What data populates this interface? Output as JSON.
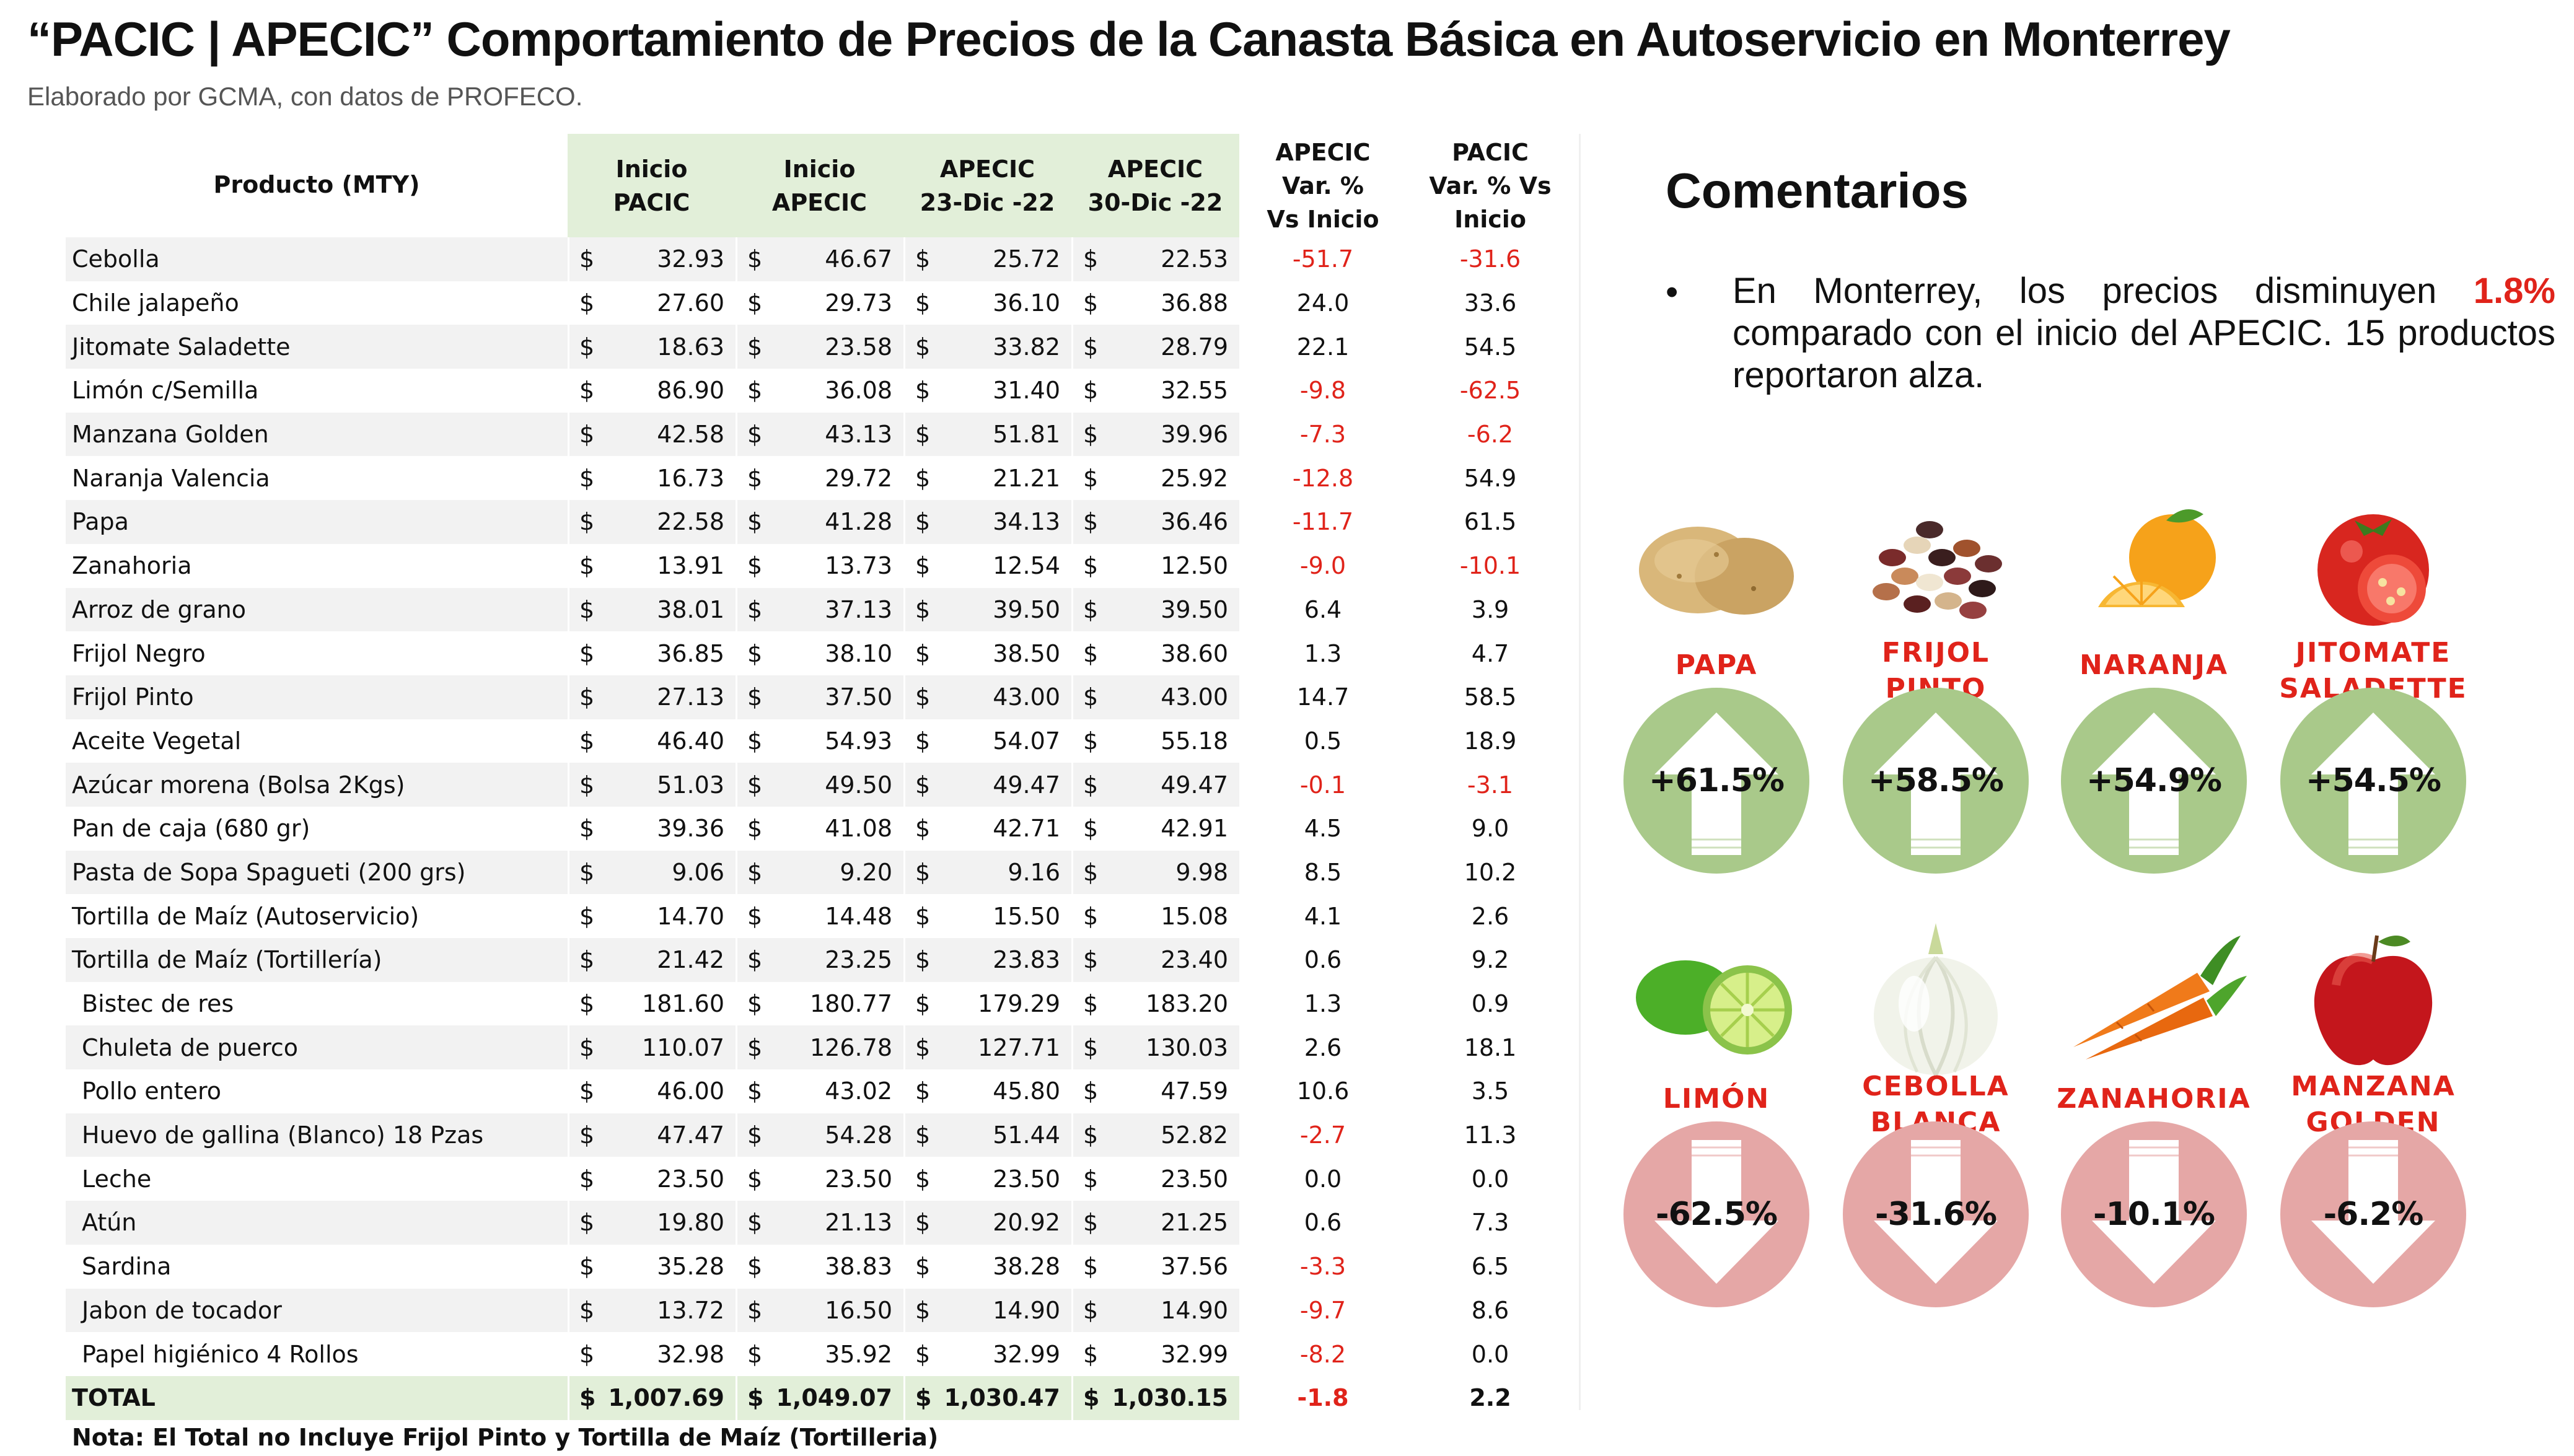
{
  "title": "“PACIC | APECIC” Comportamiento de Precios de la Canasta Básica en Autoservicio en Monterrey",
  "subtitle": "Elaborado por GCMA, con datos de PROFECO.",
  "table": {
    "headers": {
      "product": "Producto (MTY)",
      "c1": [
        "Inicio",
        "PACIC"
      ],
      "c2": [
        "Inicio",
        "APECIC"
      ],
      "c3": [
        "APECIC",
        "23-Dic -22"
      ],
      "c4": [
        "APECIC",
        "30-Dic -22"
      ],
      "c5": [
        "APECIC",
        "Var. %",
        "Vs  Inicio"
      ],
      "c6": [
        "PACIC",
        "Var. % Vs",
        "Inicio"
      ]
    },
    "currency": "$",
    "rows": [
      {
        "product": "Cebolla",
        "indent": false,
        "inicio_pacic": "32.93",
        "inicio_apecic": "46.67",
        "apecic_23dic": "25.72",
        "apecic_30dic": "22.53",
        "var_apecic": "-51.7",
        "var_pacic": "-31.6"
      },
      {
        "product": "Chile jalapeño",
        "indent": false,
        "inicio_pacic": "27.60",
        "inicio_apecic": "29.73",
        "apecic_23dic": "36.10",
        "apecic_30dic": "36.88",
        "var_apecic": "24.0",
        "var_pacic": "33.6"
      },
      {
        "product": "Jitomate Saladette",
        "indent": false,
        "inicio_pacic": "18.63",
        "inicio_apecic": "23.58",
        "apecic_23dic": "33.82",
        "apecic_30dic": "28.79",
        "var_apecic": "22.1",
        "var_pacic": "54.5"
      },
      {
        "product": "Limón c/Semilla",
        "indent": false,
        "inicio_pacic": "86.90",
        "inicio_apecic": "36.08",
        "apecic_23dic": "31.40",
        "apecic_30dic": "32.55",
        "var_apecic": "-9.8",
        "var_pacic": "-62.5"
      },
      {
        "product": "Manzana Golden",
        "indent": false,
        "inicio_pacic": "42.58",
        "inicio_apecic": "43.13",
        "apecic_23dic": "51.81",
        "apecic_30dic": "39.96",
        "var_apecic": "-7.3",
        "var_pacic": "-6.2"
      },
      {
        "product": "Naranja Valencia",
        "indent": false,
        "inicio_pacic": "16.73",
        "inicio_apecic": "29.72",
        "apecic_23dic": "21.21",
        "apecic_30dic": "25.92",
        "var_apecic": "-12.8",
        "var_pacic": "54.9"
      },
      {
        "product": "Papa",
        "indent": false,
        "inicio_pacic": "22.58",
        "inicio_apecic": "41.28",
        "apecic_23dic": "34.13",
        "apecic_30dic": "36.46",
        "var_apecic": "-11.7",
        "var_pacic": "61.5"
      },
      {
        "product": "Zanahoria",
        "indent": false,
        "inicio_pacic": "13.91",
        "inicio_apecic": "13.73",
        "apecic_23dic": "12.54",
        "apecic_30dic": "12.50",
        "var_apecic": "-9.0",
        "var_pacic": "-10.1"
      },
      {
        "product": "Arroz de grano",
        "indent": false,
        "inicio_pacic": "38.01",
        "inicio_apecic": "37.13",
        "apecic_23dic": "39.50",
        "apecic_30dic": "39.50",
        "var_apecic": "6.4",
        "var_pacic": "3.9"
      },
      {
        "product": "Frijol Negro",
        "indent": false,
        "inicio_pacic": "36.85",
        "inicio_apecic": "38.10",
        "apecic_23dic": "38.50",
        "apecic_30dic": "38.60",
        "var_apecic": "1.3",
        "var_pacic": "4.7"
      },
      {
        "product": "Frijol Pinto",
        "indent": false,
        "inicio_pacic": "27.13",
        "inicio_apecic": "37.50",
        "apecic_23dic": "43.00",
        "apecic_30dic": "43.00",
        "var_apecic": "14.7",
        "var_pacic": "58.5"
      },
      {
        "product": "Aceite Vegetal",
        "indent": false,
        "inicio_pacic": "46.40",
        "inicio_apecic": "54.93",
        "apecic_23dic": "54.07",
        "apecic_30dic": "55.18",
        "var_apecic": "0.5",
        "var_pacic": "18.9"
      },
      {
        "product": "Azúcar morena (Bolsa 2Kgs)",
        "indent": false,
        "inicio_pacic": "51.03",
        "inicio_apecic": "49.50",
        "apecic_23dic": "49.47",
        "apecic_30dic": "49.47",
        "var_apecic": "-0.1",
        "var_pacic": "-3.1"
      },
      {
        "product": "Pan de caja (680 gr)",
        "indent": false,
        "inicio_pacic": "39.36",
        "inicio_apecic": "41.08",
        "apecic_23dic": "42.71",
        "apecic_30dic": "42.91",
        "var_apecic": "4.5",
        "var_pacic": "9.0"
      },
      {
        "product": "Pasta de Sopa Spagueti (200 grs)",
        "indent": false,
        "inicio_pacic": "9.06",
        "inicio_apecic": "9.20",
        "apecic_23dic": "9.16",
        "apecic_30dic": "9.98",
        "var_apecic": "8.5",
        "var_pacic": "10.2"
      },
      {
        "product": "Tortilla de Maíz (Autoservicio)",
        "indent": false,
        "inicio_pacic": "14.70",
        "inicio_apecic": "14.48",
        "apecic_23dic": "15.50",
        "apecic_30dic": "15.08",
        "var_apecic": "4.1",
        "var_pacic": "2.6"
      },
      {
        "product": "Tortilla de Maíz (Tortillería)",
        "indent": false,
        "inicio_pacic": "21.42",
        "inicio_apecic": "23.25",
        "apecic_23dic": "23.83",
        "apecic_30dic": "23.40",
        "var_apecic": "0.6",
        "var_pacic": "9.2"
      },
      {
        "product": "Bistec de res",
        "indent": true,
        "inicio_pacic": "181.60",
        "inicio_apecic": "180.77",
        "apecic_23dic": "179.29",
        "apecic_30dic": "183.20",
        "var_apecic": "1.3",
        "var_pacic": "0.9"
      },
      {
        "product": "Chuleta de puerco",
        "indent": true,
        "inicio_pacic": "110.07",
        "inicio_apecic": "126.78",
        "apecic_23dic": "127.71",
        "apecic_30dic": "130.03",
        "var_apecic": "2.6",
        "var_pacic": "18.1"
      },
      {
        "product": "Pollo entero",
        "indent": true,
        "inicio_pacic": "46.00",
        "inicio_apecic": "43.02",
        "apecic_23dic": "45.80",
        "apecic_30dic": "47.59",
        "var_apecic": "10.6",
        "var_pacic": "3.5"
      },
      {
        "product": "Huevo de gallina (Blanco) 18 Pzas",
        "indent": true,
        "inicio_pacic": "47.47",
        "inicio_apecic": "54.28",
        "apecic_23dic": "51.44",
        "apecic_30dic": "52.82",
        "var_apecic": "-2.7",
        "var_pacic": "11.3"
      },
      {
        "product": "Leche",
        "indent": true,
        "inicio_pacic": "23.50",
        "inicio_apecic": "23.50",
        "apecic_23dic": "23.50",
        "apecic_30dic": "23.50",
        "var_apecic": "0.0",
        "var_pacic": "0.0"
      },
      {
        "product": "Atún",
        "indent": true,
        "inicio_pacic": "19.80",
        "inicio_apecic": "21.13",
        "apecic_23dic": "20.92",
        "apecic_30dic": "21.25",
        "var_apecic": "0.6",
        "var_pacic": "7.3"
      },
      {
        "product": "Sardina",
        "indent": true,
        "inicio_pacic": "35.28",
        "inicio_apecic": "38.83",
        "apecic_23dic": "38.28",
        "apecic_30dic": "37.56",
        "var_apecic": "-3.3",
        "var_pacic": "6.5"
      },
      {
        "product": "Jabon de tocador",
        "indent": true,
        "inicio_pacic": "13.72",
        "inicio_apecic": "16.50",
        "apecic_23dic": "14.90",
        "apecic_30dic": "14.90",
        "var_apecic": "-9.7",
        "var_pacic": "8.6"
      },
      {
        "product": "Papel higiénico 4 Rollos",
        "indent": true,
        "inicio_pacic": "32.98",
        "inicio_apecic": "35.92",
        "apecic_23dic": "32.99",
        "apecic_30dic": "32.99",
        "var_apecic": "-8.2",
        "var_pacic": "0.0"
      }
    ],
    "total": {
      "product": "TOTAL",
      "inicio_pacic": "1,007.69",
      "inicio_apecic": "1,049.07",
      "apecic_23dic": "1,030.47",
      "apecic_30dic": "1,030.15",
      "var_apecic": "-1.8",
      "var_pacic": "2.2"
    },
    "note": "Nota: El Total no Incluye Frijol Pinto y Tortilla de Maíz (Tortilleria)"
  },
  "comments": {
    "heading": "Comentarios",
    "bullet": "•",
    "text_before": "En Monterrey, los precios disminuyen ",
    "highlight": "1.8%",
    "text_after": " comparado con el inicio del APECIC. 15 productos reportaron alza."
  },
  "highlights": {
    "up": [
      {
        "label": "PAPA",
        "value": "+61.5%",
        "icon": "potato-icon"
      },
      {
        "label": "FRIJOL\nPINTO",
        "value": "+58.5%",
        "icon": "beans-icon"
      },
      {
        "label": "NARANJA",
        "value": "+54.9%",
        "icon": "orange-icon"
      },
      {
        "label": "JITOMATE\nSALADETTE",
        "value": "+54.5%",
        "icon": "tomato-icon"
      }
    ],
    "down": [
      {
        "label": "LIMÓN",
        "value": "-62.5%",
        "icon": "lime-icon"
      },
      {
        "label": "CEBOLLA\nBLANCA",
        "value": "-31.6%",
        "icon": "onion-icon"
      },
      {
        "label": "ZANAHORIA",
        "value": "-10.1%",
        "icon": "carrot-icon"
      },
      {
        "label": "MANZANA\nGOLDEN",
        "value": "-6.2%",
        "icon": "apple-icon"
      }
    ]
  },
  "colors": {
    "accent_red": "#e0231a",
    "header_green": "#e2efd9",
    "up_circle": "#a9c98a",
    "down_circle": "#e5a7a6",
    "row_alt": "#f2f2f2"
  }
}
